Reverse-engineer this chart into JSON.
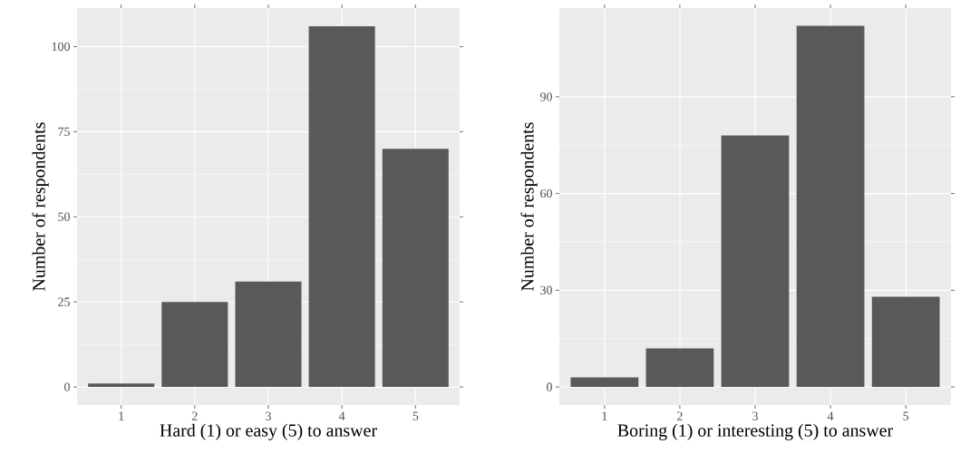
{
  "chart_data": [
    {
      "type": "bar",
      "categories": [
        "1",
        "2",
        "3",
        "4",
        "5"
      ],
      "values": [
        1,
        25,
        31,
        106,
        70
      ],
      "color": "#595959",
      "xlabel": "Hard (1) or easy (5) to answer",
      "ylabel": "Number of respondents",
      "ylim": [
        -5.3,
        111.3
      ],
      "yticks": [
        0,
        25,
        50,
        75,
        100
      ],
      "grid": true
    },
    {
      "type": "bar",
      "categories": [
        "1",
        "2",
        "3",
        "4",
        "5"
      ],
      "values": [
        3,
        12,
        78,
        112,
        28
      ],
      "color": "#595959",
      "xlabel": "Boring (1) or interesting (5) to answer",
      "ylabel": "Number of respondents",
      "ylim": [
        -5.6,
        117.5
      ],
      "yticks": [
        0,
        30,
        60,
        90
      ],
      "grid": true
    }
  ]
}
